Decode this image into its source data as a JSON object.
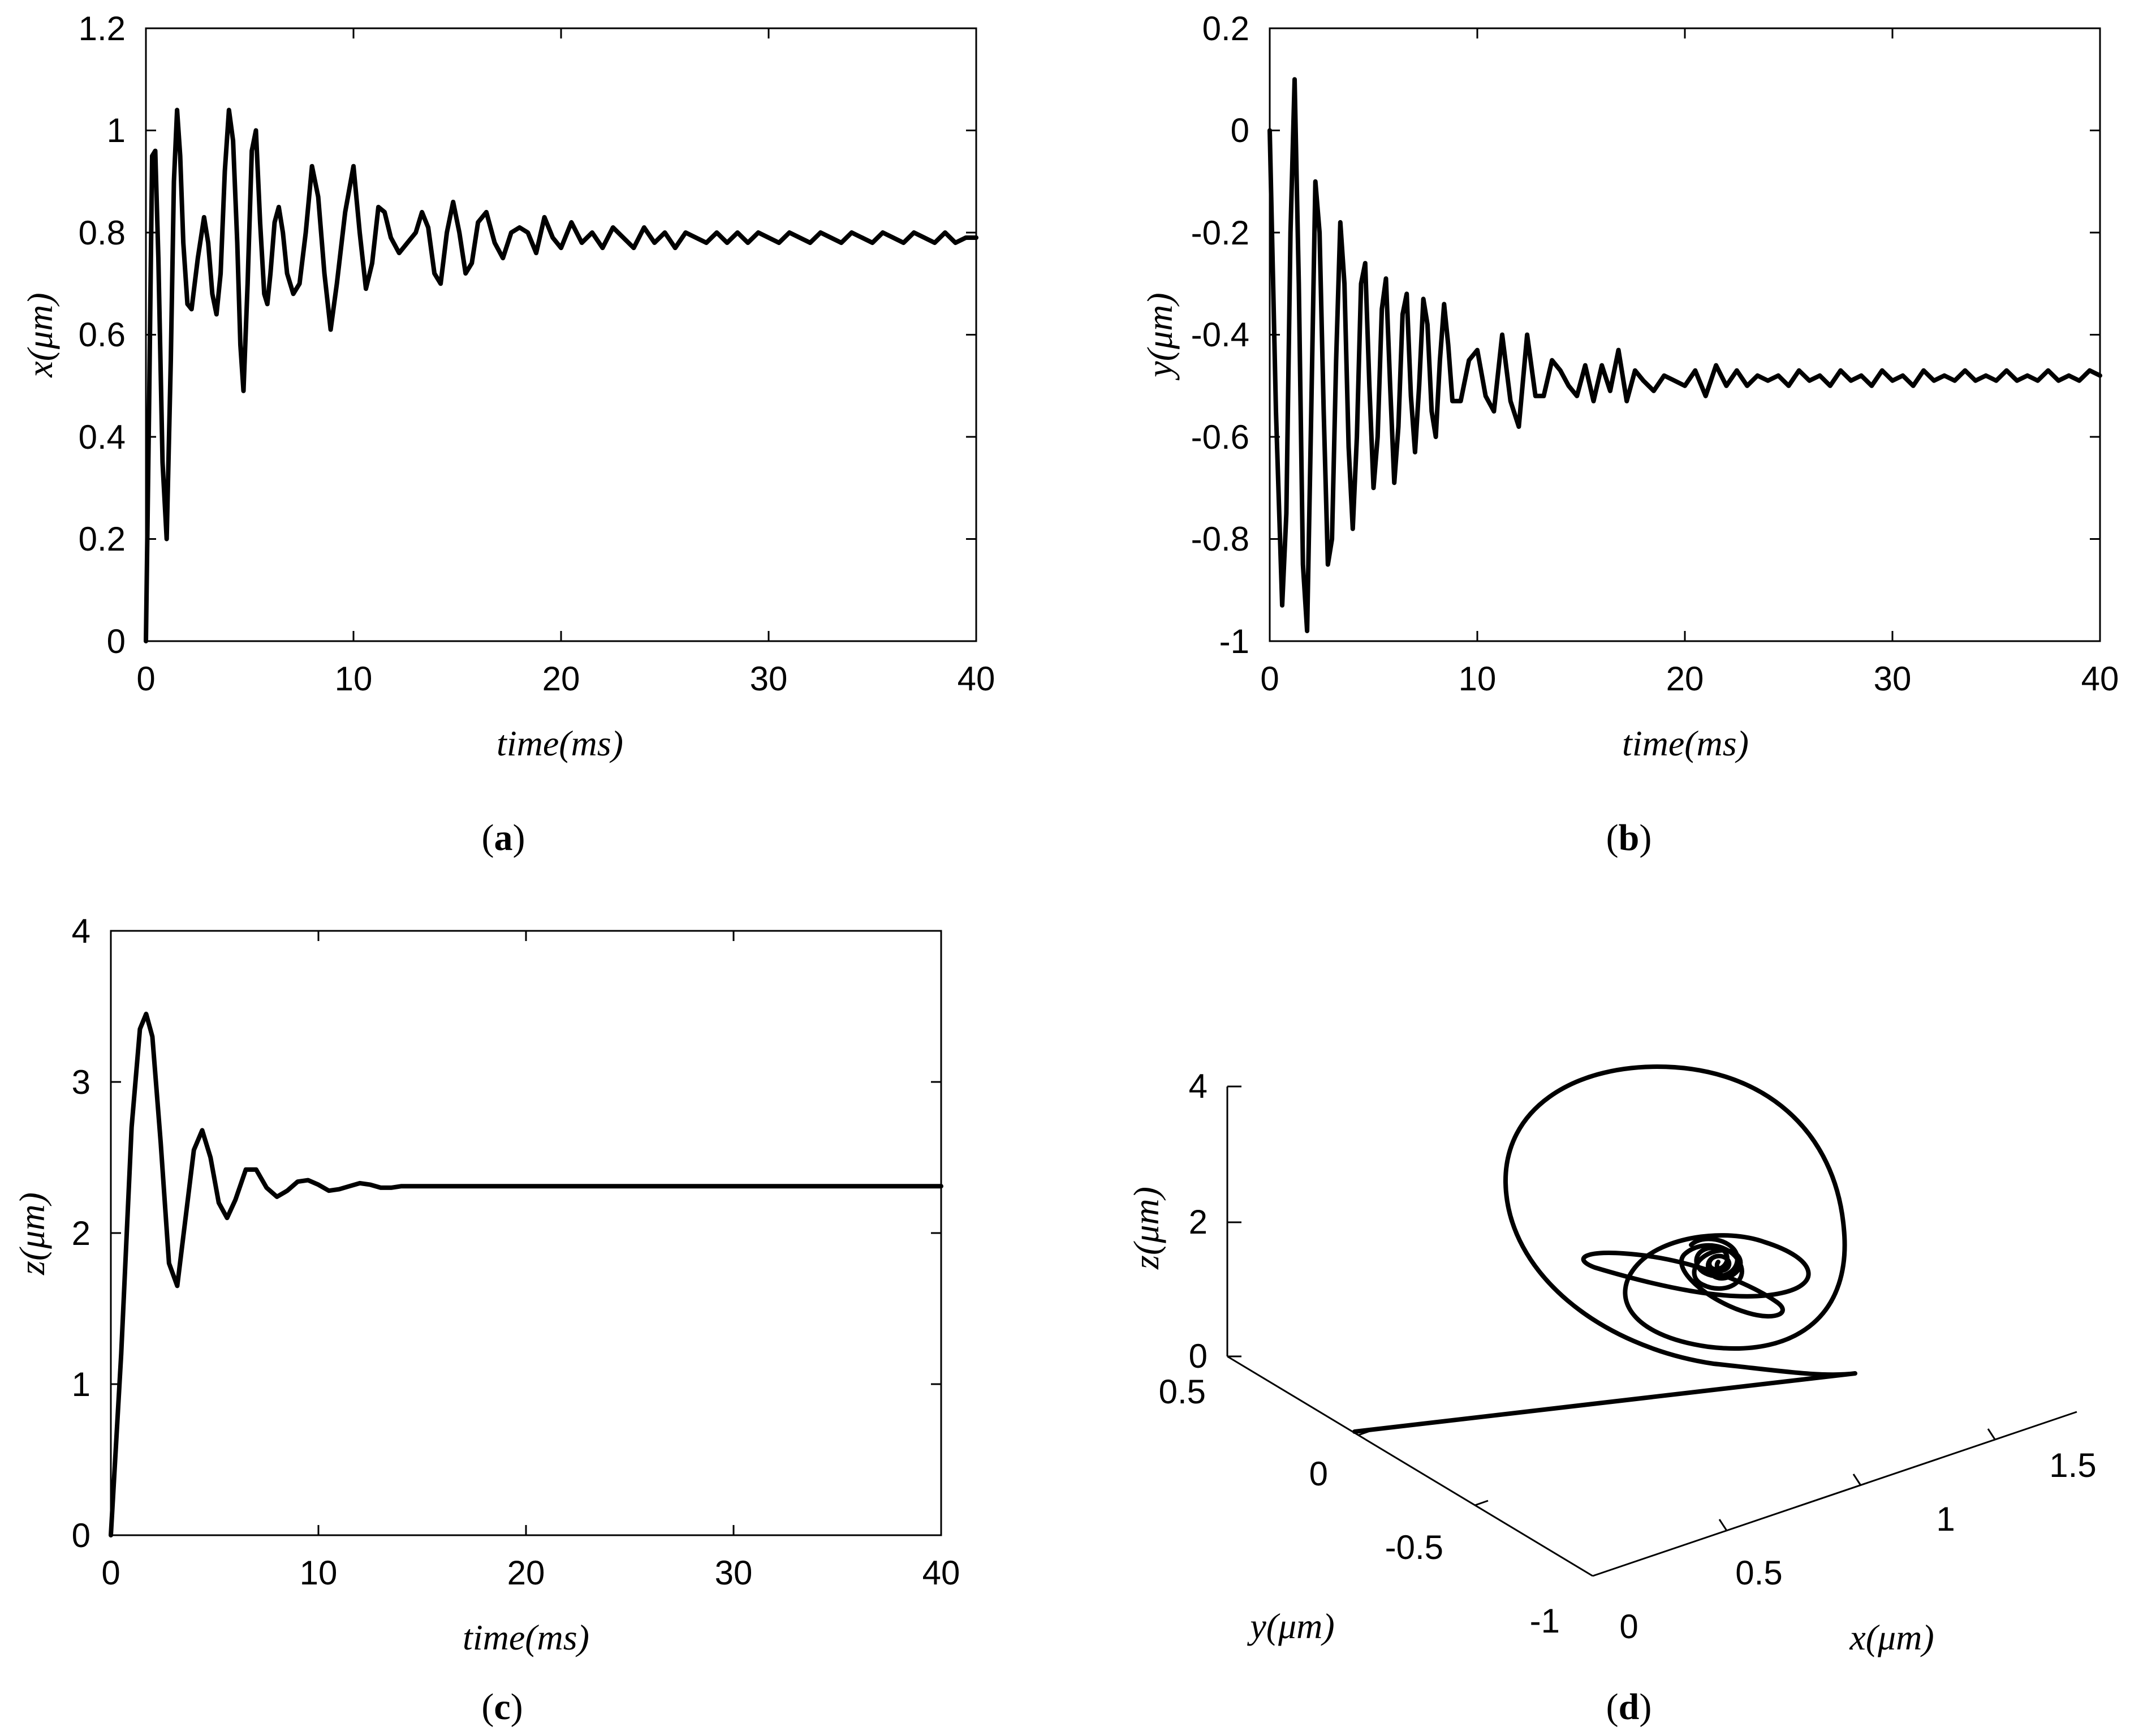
{
  "chart_data": [
    {
      "id": "a",
      "type": "line",
      "caption": "a",
      "xlabel": "time(ms)",
      "ylabel": "x(μm)",
      "xlim": [
        0,
        40
      ],
      "ylim": [
        0,
        1.2
      ],
      "xticks": [
        "0",
        "10",
        "20",
        "30",
        "40"
      ],
      "yticks": [
        "0",
        "0.2",
        "0.4",
        "0.6",
        "0.8",
        "1",
        "1.2"
      ],
      "grid": false,
      "series": [
        {
          "name": "x",
          "x": [
            0,
            0.15,
            0.3,
            0.45,
            0.6,
            0.8,
            1.0,
            1.2,
            1.35,
            1.5,
            1.65,
            1.8,
            2.0,
            2.2,
            2.5,
            2.8,
            3.0,
            3.2,
            3.4,
            3.6,
            3.8,
            4.0,
            4.2,
            4.4,
            4.55,
            4.7,
            4.9,
            5.1,
            5.3,
            5.5,
            5.7,
            5.85,
            6.0,
            6.2,
            6.4,
            6.6,
            6.8,
            7.1,
            7.4,
            7.7,
            8.0,
            8.3,
            8.6,
            8.9,
            9.2,
            9.6,
            10.0,
            10.3,
            10.6,
            10.9,
            11.2,
            11.5,
            11.8,
            12.2,
            12.6,
            13.0,
            13.3,
            13.6,
            13.9,
            14.2,
            14.5,
            14.8,
            15.1,
            15.4,
            15.7,
            16.0,
            16.4,
            16.8,
            17.2,
            17.6,
            18.0,
            18.4,
            18.8,
            19.2,
            19.6,
            20.0,
            20.5,
            21.0,
            21.5,
            22.0,
            22.5,
            23.0,
            23.5,
            24.0,
            24.5,
            25.0,
            25.5,
            26.0,
            26.5,
            27.0,
            27.5,
            28.0,
            28.5,
            29.0,
            29.5,
            30.0,
            30.5,
            31.0,
            31.5,
            32.0,
            32.5,
            33.0,
            33.5,
            34.0,
            34.5,
            35.0,
            35.5,
            36.0,
            36.5,
            37.0,
            37.5,
            38.0,
            38.5,
            39.0,
            39.5,
            40.0
          ],
          "y": [
            0,
            0.45,
            0.95,
            0.96,
            0.75,
            0.35,
            0.2,
            0.55,
            0.9,
            1.04,
            0.95,
            0.78,
            0.66,
            0.65,
            0.75,
            0.83,
            0.78,
            0.68,
            0.64,
            0.72,
            0.92,
            1.04,
            0.98,
            0.78,
            0.58,
            0.49,
            0.7,
            0.96,
            1.0,
            0.82,
            0.68,
            0.66,
            0.72,
            0.82,
            0.85,
            0.8,
            0.72,
            0.68,
            0.7,
            0.8,
            0.93,
            0.87,
            0.72,
            0.61,
            0.7,
            0.84,
            0.93,
            0.8,
            0.69,
            0.74,
            0.85,
            0.84,
            0.79,
            0.76,
            0.78,
            0.8,
            0.84,
            0.81,
            0.72,
            0.7,
            0.8,
            0.86,
            0.8,
            0.72,
            0.74,
            0.82,
            0.84,
            0.78,
            0.75,
            0.8,
            0.81,
            0.8,
            0.76,
            0.83,
            0.79,
            0.77,
            0.82,
            0.78,
            0.8,
            0.77,
            0.81,
            0.79,
            0.77,
            0.81,
            0.78,
            0.8,
            0.77,
            0.8,
            0.79,
            0.78,
            0.8,
            0.78,
            0.8,
            0.78,
            0.8,
            0.79,
            0.78,
            0.8,
            0.79,
            0.78,
            0.8,
            0.79,
            0.78,
            0.8,
            0.79,
            0.78,
            0.8,
            0.79,
            0.78,
            0.8,
            0.79,
            0.78,
            0.8,
            0.78,
            0.79,
            0.79
          ]
        }
      ]
    },
    {
      "id": "b",
      "type": "line",
      "caption": "b",
      "xlabel": "time(ms)",
      "ylabel": "y(μm)",
      "xlim": [
        0,
        40
      ],
      "ylim": [
        -1,
        0.2
      ],
      "xticks": [
        "0",
        "10",
        "20",
        "30",
        "40"
      ],
      "yticks": [
        "-1",
        "-0.8",
        "-0.6",
        "-0.4",
        "-0.2",
        "0",
        "0.2"
      ],
      "grid": false,
      "series": [
        {
          "name": "y",
          "x": [
            0,
            0.3,
            0.6,
            0.8,
            1.0,
            1.2,
            1.4,
            1.6,
            1.8,
            2.0,
            2.2,
            2.4,
            2.6,
            2.8,
            3.0,
            3.2,
            3.4,
            3.6,
            3.8,
            4.0,
            4.2,
            4.4,
            4.6,
            4.8,
            5.0,
            5.2,
            5.4,
            5.6,
            5.8,
            6.0,
            6.2,
            6.4,
            6.6,
            6.8,
            7.0,
            7.2,
            7.4,
            7.6,
            7.8,
            8.0,
            8.2,
            8.4,
            8.6,
            8.8,
            9.2,
            9.6,
            10.0,
            10.4,
            10.8,
            11.2,
            11.6,
            12.0,
            12.4,
            12.8,
            13.2,
            13.6,
            14.0,
            14.4,
            14.8,
            15.2,
            15.6,
            16.0,
            16.4,
            16.8,
            17.2,
            17.6,
            18.0,
            18.5,
            19.0,
            19.5,
            20.0,
            20.5,
            21.0,
            21.5,
            22.0,
            22.5,
            23.0,
            23.5,
            24.0,
            24.5,
            25.0,
            25.5,
            26.0,
            26.5,
            27.0,
            27.5,
            28.0,
            28.5,
            29.0,
            29.5,
            30.0,
            30.5,
            31.0,
            31.5,
            32.0,
            32.5,
            33.0,
            33.5,
            34.0,
            34.5,
            35.0,
            35.5,
            36.0,
            36.5,
            37.0,
            37.5,
            38.0,
            38.5,
            39.0,
            39.5,
            40.0
          ],
          "y": [
            0,
            -0.55,
            -0.93,
            -0.75,
            -0.2,
            0.1,
            -0.3,
            -0.85,
            -0.98,
            -0.55,
            -0.1,
            -0.2,
            -0.55,
            -0.85,
            -0.8,
            -0.45,
            -0.18,
            -0.3,
            -0.62,
            -0.78,
            -0.6,
            -0.3,
            -0.26,
            -0.5,
            -0.7,
            -0.6,
            -0.35,
            -0.29,
            -0.5,
            -0.69,
            -0.58,
            -0.36,
            -0.32,
            -0.52,
            -0.63,
            -0.5,
            -0.33,
            -0.38,
            -0.55,
            -0.6,
            -0.45,
            -0.34,
            -0.42,
            -0.53,
            -0.53,
            -0.45,
            -0.43,
            -0.52,
            -0.55,
            -0.4,
            -0.53,
            -0.58,
            -0.4,
            -0.52,
            -0.52,
            -0.45,
            -0.47,
            -0.5,
            -0.52,
            -0.46,
            -0.53,
            -0.46,
            -0.51,
            -0.43,
            -0.53,
            -0.47,
            -0.49,
            -0.51,
            -0.48,
            -0.49,
            -0.5,
            -0.47,
            -0.52,
            -0.46,
            -0.5,
            -0.47,
            -0.5,
            -0.48,
            -0.49,
            -0.48,
            -0.5,
            -0.47,
            -0.49,
            -0.48,
            -0.5,
            -0.47,
            -0.49,
            -0.48,
            -0.5,
            -0.47,
            -0.49,
            -0.48,
            -0.5,
            -0.47,
            -0.49,
            -0.48,
            -0.49,
            -0.47,
            -0.49,
            -0.48,
            -0.49,
            -0.47,
            -0.49,
            -0.48,
            -0.49,
            -0.47,
            -0.49,
            -0.48,
            -0.49,
            -0.47,
            -0.48
          ]
        }
      ]
    },
    {
      "id": "c",
      "type": "line",
      "caption": "c",
      "xlabel": "time(ms)",
      "ylabel": "z(μm)",
      "xlim": [
        0,
        40
      ],
      "ylim": [
        0,
        4
      ],
      "xticks": [
        "0",
        "10",
        "20",
        "30",
        "40"
      ],
      "yticks": [
        "0",
        "1",
        "2",
        "3",
        "4"
      ],
      "grid": false,
      "series": [
        {
          "name": "z",
          "x": [
            0,
            0.5,
            1.0,
            1.4,
            1.7,
            2.0,
            2.4,
            2.8,
            3.2,
            3.6,
            4.0,
            4.4,
            4.8,
            5.2,
            5.6,
            6.0,
            6.5,
            7.0,
            7.5,
            8.0,
            8.5,
            9.0,
            9.5,
            10.0,
            10.5,
            11.0,
            11.5,
            12.0,
            12.5,
            13.0,
            13.5,
            14.0,
            15.0,
            16.0,
            17.0,
            18.0,
            20.0,
            25.0,
            30.0,
            35.0,
            40.0
          ],
          "y": [
            0,
            1.2,
            2.7,
            3.35,
            3.45,
            3.3,
            2.6,
            1.8,
            1.65,
            2.1,
            2.55,
            2.68,
            2.5,
            2.2,
            2.1,
            2.22,
            2.42,
            2.42,
            2.3,
            2.24,
            2.28,
            2.34,
            2.35,
            2.32,
            2.28,
            2.29,
            2.31,
            2.33,
            2.32,
            2.3,
            2.3,
            2.31,
            2.31,
            2.31,
            2.31,
            2.31,
            2.31,
            2.31,
            2.31,
            2.31,
            2.31
          ]
        }
      ]
    },
    {
      "id": "d",
      "type": "line3d",
      "caption": "d",
      "xlabel": "x(μm)",
      "ylabel": "y(μm)",
      "zlabel": "z(μm)",
      "xticks": [
        "0",
        "0.5",
        "1",
        "1.5"
      ],
      "yticks": [
        "-1",
        "-0.5",
        "0",
        "0.5"
      ],
      "zticks": [
        "0",
        "2",
        "4"
      ],
      "note": "3D trajectory of (x, y, z) over time"
    }
  ]
}
